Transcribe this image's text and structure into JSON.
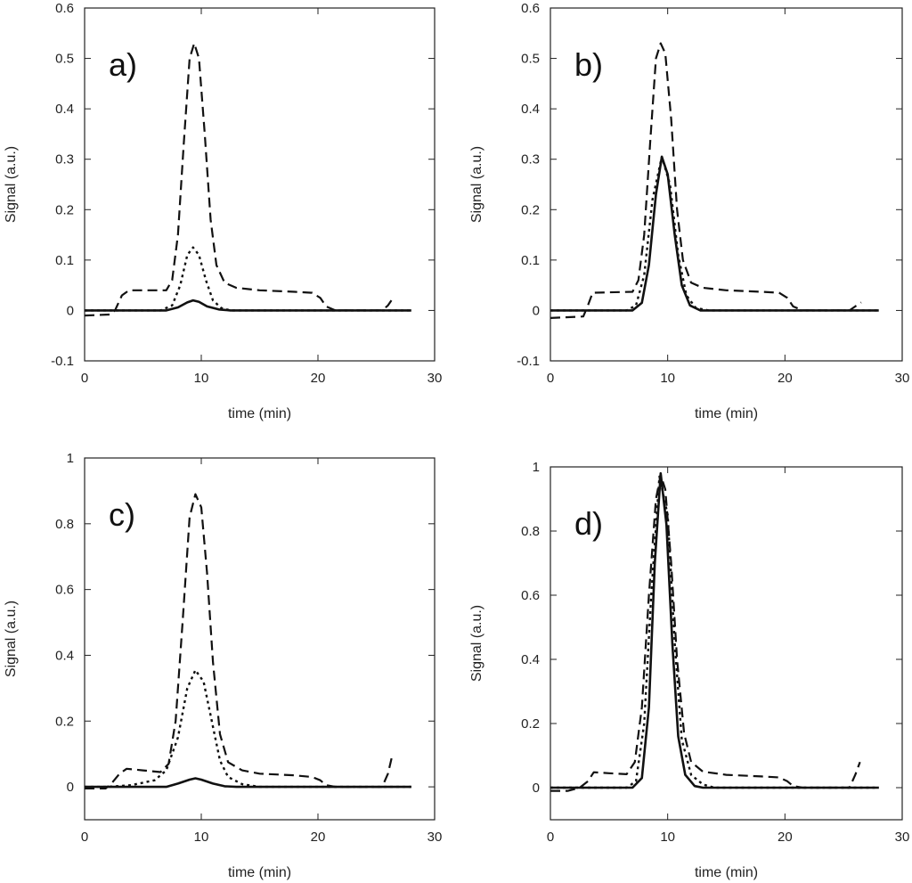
{
  "chart_data": [
    {
      "type": "line",
      "panel_label": "a)",
      "xlabel": "time (min)",
      "ylabel": "Signal (a.u.)",
      "xlim": [
        0,
        30
      ],
      "ylim": [
        -0.1,
        0.6
      ],
      "xticks": [
        0,
        10,
        20,
        30
      ],
      "yticks": [
        -0.1,
        0,
        0.1,
        0.2,
        0.3,
        0.4,
        0.5,
        0.6
      ],
      "grid": false,
      "legend": "none",
      "series": [
        {
          "style": "dashed",
          "points": [
            [
              0,
              -0.01
            ],
            [
              2.2,
              -0.008
            ],
            [
              2.6,
              0.0
            ],
            [
              3.2,
              0.03
            ],
            [
              3.8,
              0.04
            ],
            [
              5,
              0.04
            ],
            [
              7,
              0.04
            ],
            [
              7.5,
              0.06
            ],
            [
              8,
              0.15
            ],
            [
              8.5,
              0.33
            ],
            [
              9,
              0.5
            ],
            [
              9.4,
              0.53
            ],
            [
              9.8,
              0.5
            ],
            [
              10.3,
              0.35
            ],
            [
              10.8,
              0.18
            ],
            [
              11.3,
              0.09
            ],
            [
              12,
              0.055
            ],
            [
              13,
              0.045
            ],
            [
              15,
              0.04
            ],
            [
              18,
              0.037
            ],
            [
              19.5,
              0.035
            ],
            [
              20.2,
              0.025
            ],
            [
              20.7,
              0.008
            ],
            [
              21.5,
              0.0
            ],
            [
              25.5,
              0.0
            ],
            [
              26.0,
              0.01
            ],
            [
              26.3,
              0.02
            ]
          ]
        },
        {
          "style": "dotted",
          "points": [
            [
              0,
              0
            ],
            [
              6.5,
              0
            ],
            [
              7.5,
              0.01
            ],
            [
              8.2,
              0.05
            ],
            [
              8.8,
              0.11
            ],
            [
              9.3,
              0.125
            ],
            [
              9.8,
              0.11
            ],
            [
              10.4,
              0.06
            ],
            [
              11.0,
              0.02
            ],
            [
              11.7,
              0.005
            ],
            [
              12.5,
              0
            ],
            [
              28,
              0
            ]
          ]
        },
        {
          "style": "solid",
          "points": [
            [
              0,
              0
            ],
            [
              7,
              0
            ],
            [
              8,
              0.006
            ],
            [
              8.8,
              0.016
            ],
            [
              9.3,
              0.02
            ],
            [
              9.8,
              0.017
            ],
            [
              10.5,
              0.008
            ],
            [
              11.5,
              0.002
            ],
            [
              12.5,
              0
            ],
            [
              28,
              0
            ]
          ]
        }
      ]
    },
    {
      "type": "line",
      "panel_label": "b)",
      "xlabel": "time (min)",
      "ylabel": "Signal (a.u.)",
      "xlim": [
        0,
        30
      ],
      "ylim": [
        -0.1,
        0.6
      ],
      "xticks": [
        0,
        10,
        20,
        30
      ],
      "yticks": [
        -0.1,
        0,
        0.1,
        0.2,
        0.3,
        0.4,
        0.5,
        0.6
      ],
      "grid": false,
      "legend": "none",
      "series": [
        {
          "style": "dashed",
          "points": [
            [
              0,
              -0.015
            ],
            [
              2.8,
              -0.012
            ],
            [
              3.2,
              0.01
            ],
            [
              3.6,
              0.035
            ],
            [
              5,
              0.036
            ],
            [
              7,
              0.037
            ],
            [
              7.5,
              0.06
            ],
            [
              8,
              0.15
            ],
            [
              8.5,
              0.33
            ],
            [
              9,
              0.5
            ],
            [
              9.4,
              0.53
            ],
            [
              9.8,
              0.51
            ],
            [
              10.3,
              0.38
            ],
            [
              10.8,
              0.2
            ],
            [
              11.3,
              0.1
            ],
            [
              12,
              0.055
            ],
            [
              13,
              0.045
            ],
            [
              15,
              0.04
            ],
            [
              18,
              0.037
            ],
            [
              19.5,
              0.035
            ],
            [
              20.2,
              0.025
            ],
            [
              20.7,
              0.008
            ],
            [
              21.5,
              0.0
            ],
            [
              25.5,
              0.0
            ],
            [
              26.0,
              0.008
            ],
            [
              26.5,
              0.016
            ]
          ]
        },
        {
          "style": "dotted",
          "points": [
            [
              0,
              0
            ],
            [
              6.5,
              0
            ],
            [
              7.3,
              0.01
            ],
            [
              8,
              0.07
            ],
            [
              8.7,
              0.22
            ],
            [
              9.5,
              0.305
            ],
            [
              10.2,
              0.25
            ],
            [
              10.9,
              0.11
            ],
            [
              11.6,
              0.03
            ],
            [
              12.4,
              0.005
            ],
            [
              13.5,
              0
            ],
            [
              28,
              0
            ]
          ]
        },
        {
          "style": "solid",
          "points": [
            [
              0,
              0
            ],
            [
              7,
              0
            ],
            [
              7.8,
              0.015
            ],
            [
              8.4,
              0.09
            ],
            [
              9,
              0.23
            ],
            [
              9.5,
              0.305
            ],
            [
              10,
              0.27
            ],
            [
              10.6,
              0.15
            ],
            [
              11.2,
              0.05
            ],
            [
              11.9,
              0.01
            ],
            [
              12.8,
              0
            ],
            [
              28,
              0
            ]
          ]
        }
      ]
    },
    {
      "type": "line",
      "panel_label": "c)",
      "xlabel": "time (min)",
      "ylabel": "Signal (a.u.)",
      "xlim": [
        0,
        30
      ],
      "ylim": [
        -0.1,
        1.0
      ],
      "xticks": [
        0,
        10,
        20,
        30
      ],
      "yticks": [
        0,
        0.2,
        0.4,
        0.6,
        0.8,
        1
      ],
      "grid": false,
      "legend": "none",
      "series": [
        {
          "style": "dashed",
          "points": [
            [
              0,
              -0.005
            ],
            [
              1.8,
              -0.005
            ],
            [
              2.3,
              0.01
            ],
            [
              3,
              0.04
            ],
            [
              3.6,
              0.055
            ],
            [
              5,
              0.05
            ],
            [
              6.5,
              0.045
            ],
            [
              7.2,
              0.07
            ],
            [
              7.8,
              0.2
            ],
            [
              8.4,
              0.5
            ],
            [
              9,
              0.82
            ],
            [
              9.5,
              0.89
            ],
            [
              10,
              0.85
            ],
            [
              10.5,
              0.65
            ],
            [
              11,
              0.38
            ],
            [
              11.6,
              0.16
            ],
            [
              12.3,
              0.075
            ],
            [
              13.5,
              0.05
            ],
            [
              15,
              0.04
            ],
            [
              18,
              0.035
            ],
            [
              19.5,
              0.03
            ],
            [
              20.2,
              0.02
            ],
            [
              20.7,
              0.005
            ],
            [
              21.5,
              0.0
            ],
            [
              25.5,
              0.0
            ],
            [
              26.0,
              0.04
            ],
            [
              26.4,
              0.1
            ]
          ]
        },
        {
          "style": "dotted",
          "points": [
            [
              0,
              0
            ],
            [
              2,
              0
            ],
            [
              4,
              0.005
            ],
            [
              6,
              0.02
            ],
            [
              7,
              0.05
            ],
            [
              8,
              0.15
            ],
            [
              8.8,
              0.3
            ],
            [
              9.5,
              0.355
            ],
            [
              10.2,
              0.32
            ],
            [
              10.9,
              0.2
            ],
            [
              11.6,
              0.08
            ],
            [
              12.3,
              0.03
            ],
            [
              13.5,
              0.008
            ],
            [
              15,
              0
            ],
            [
              28,
              0
            ]
          ]
        },
        {
          "style": "solid",
          "points": [
            [
              0,
              0
            ],
            [
              7,
              0
            ],
            [
              8,
              0.01
            ],
            [
              9,
              0.022
            ],
            [
              9.5,
              0.026
            ],
            [
              10,
              0.022
            ],
            [
              11,
              0.01
            ],
            [
              12,
              0.002
            ],
            [
              13,
              0
            ],
            [
              28,
              0
            ]
          ]
        }
      ]
    },
    {
      "type": "line",
      "panel_label": "d)",
      "xlabel": "time (min)",
      "ylabel": "Signal (a.u.)",
      "xlim": [
        0,
        30
      ],
      "ylim": [
        -0.1,
        1.0
      ],
      "xticks": [
        0,
        10,
        20,
        30
      ],
      "yticks": [
        0,
        0.2,
        0.4,
        0.6,
        0.8,
        1
      ],
      "grid": false,
      "legend": "none",
      "series": [
        {
          "style": "dashed",
          "points": [
            [
              0,
              -0.01
            ],
            [
              1.5,
              -0.01
            ],
            [
              2.5,
              0.0
            ],
            [
              3.2,
              0.02
            ],
            [
              3.7,
              0.048
            ],
            [
              5,
              0.045
            ],
            [
              6.5,
              0.042
            ],
            [
              7.2,
              0.08
            ],
            [
              7.8,
              0.25
            ],
            [
              8.4,
              0.6
            ],
            [
              9,
              0.9
            ],
            [
              9.4,
              0.975
            ],
            [
              9.8,
              0.93
            ],
            [
              10.3,
              0.7
            ],
            [
              10.8,
              0.4
            ],
            [
              11.4,
              0.17
            ],
            [
              12,
              0.08
            ],
            [
              13,
              0.05
            ],
            [
              15,
              0.04
            ],
            [
              18,
              0.035
            ],
            [
              19.5,
              0.032
            ],
            [
              20.2,
              0.02
            ],
            [
              20.7,
              0.005
            ],
            [
              21.5,
              0.0
            ],
            [
              25.5,
              0.0
            ],
            [
              26.0,
              0.04
            ],
            [
              26.4,
              0.08
            ]
          ]
        },
        {
          "style": "dotted",
          "points": [
            [
              0,
              0
            ],
            [
              6.5,
              0
            ],
            [
              7.3,
              0.02
            ],
            [
              8,
              0.2
            ],
            [
              8.6,
              0.6
            ],
            [
              9.3,
              0.97
            ],
            [
              10,
              0.85
            ],
            [
              10.6,
              0.45
            ],
            [
              11.2,
              0.15
            ],
            [
              12,
              0.04
            ],
            [
              13,
              0.01
            ],
            [
              14,
              0
            ],
            [
              28,
              0
            ]
          ]
        },
        {
          "style": "solid",
          "points": [
            [
              0,
              0
            ],
            [
              7,
              0
            ],
            [
              7.8,
              0.03
            ],
            [
              8.4,
              0.25
            ],
            [
              8.9,
              0.7
            ],
            [
              9.4,
              0.98
            ],
            [
              9.9,
              0.82
            ],
            [
              10.4,
              0.45
            ],
            [
              10.9,
              0.16
            ],
            [
              11.5,
              0.04
            ],
            [
              12.3,
              0.005
            ],
            [
              13,
              0
            ],
            [
              28,
              0
            ]
          ]
        }
      ]
    }
  ]
}
